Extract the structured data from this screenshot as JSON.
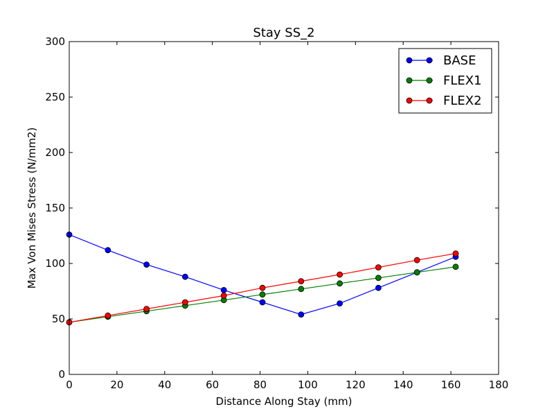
{
  "chart_data": {
    "type": "line",
    "title": "Stay SS_2",
    "xlabel": "Distance Along Stay (mm)",
    "ylabel": "Max Von Mises Stress (N/mm2)",
    "xlim": [
      0,
      180
    ],
    "ylim": [
      0,
      300
    ],
    "xticks": [
      "0",
      "20",
      "40",
      "60",
      "80",
      "100",
      "120",
      "140",
      "160",
      "180"
    ],
    "yticks": [
      "0",
      "50",
      "100",
      "150",
      "200",
      "250",
      "300"
    ],
    "grid": false,
    "legend_position": "top-right",
    "x": [
      0,
      16.2,
      32.4,
      48.6,
      64.8,
      81.0,
      97.2,
      113.4,
      129.6,
      145.8,
      162.0
    ],
    "series": [
      {
        "name": "BASE",
        "color": "#0000ff",
        "values": [
          126,
          112,
          99,
          88,
          76,
          65,
          54,
          64,
          78,
          92,
          106
        ]
      },
      {
        "name": "FLEX1",
        "color": "#008000",
        "values": [
          47,
          52,
          57,
          62,
          67,
          72,
          77,
          82,
          87,
          92,
          97
        ]
      },
      {
        "name": "FLEX2",
        "color": "#ff0000",
        "values": [
          47,
          53,
          59,
          65,
          71,
          78,
          84,
          90,
          96.5,
          103,
          109
        ]
      }
    ]
  }
}
